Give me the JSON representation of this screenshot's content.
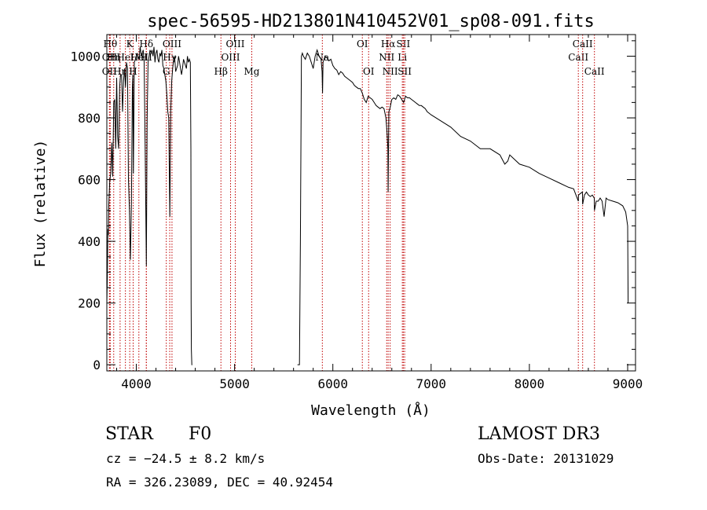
{
  "chart_data": {
    "type": "line",
    "title": "spec-56595-HD213801N410452V01_sp08-091.fits",
    "xlabel": "Wavelength (Å)",
    "ylabel": "Flux (relative)",
    "xlim": [
      3700,
      9080
    ],
    "ylim": [
      -20,
      1070
    ],
    "xticks": [
      4000,
      5000,
      6000,
      7000,
      8000,
      9000
    ],
    "yticks": [
      0,
      200,
      400,
      600,
      800,
      1000
    ],
    "grid": false,
    "series": [
      {
        "name": "flux",
        "segments": [
          {
            "x": [
              3700,
              3705,
              3710,
              3715,
              3720,
              3730,
              3740,
              3750,
              3760,
              3770,
              3780,
              3790,
              3800,
              3810,
              3820,
              3830,
              3840,
              3850,
              3860,
              3870,
              3880,
              3890,
              3900,
              3910,
              3920,
              3930,
              3940,
              3950,
              3960,
              3965,
              3970,
              3980,
              3990,
              4000,
              4010,
              4020,
              4030,
              4040,
              4050,
              4060,
              4070,
              4080,
              4090,
              4100,
              4102,
              4110,
              4120,
              4130,
              4140,
              4150,
              4160,
              4170,
              4180,
              4190,
              4200,
              4210,
              4220,
              4230,
              4240,
              4250,
              4260,
              4270,
              4280,
              4290,
              4300,
              4310,
              4320,
              4330,
              4340,
              4341,
              4350,
              4360,
              4370,
              4380,
              4390,
              4400,
              4410,
              4420,
              4430,
              4440,
              4450,
              4460,
              4470,
              4480,
              4490,
              4500,
              4510,
              4520,
              4530,
              4540,
              4550,
              4555,
              4558,
              4560,
              4565,
              4570
            ],
            "y": [
              200,
              280,
              440,
              420,
              520,
              600,
              620,
              720,
              610,
              850,
              860,
              700,
              930,
              740,
              700,
              900,
              940,
              940,
              820,
              920,
              960,
              900,
              980,
              960,
              600,
              500,
              340,
              520,
              900,
              940,
              620,
              980,
              990,
              1000,
              1010,
              990,
              1000,
              1030,
              1000,
              1010,
              1020,
              980,
              700,
              400,
              320,
              800,
              980,
              1000,
              1020,
              1010,
              1020,
              1000,
              1030,
              980,
              1010,
              1020,
              990,
              980,
              1010,
              1000,
              1020,
              970,
              960,
              940,
              920,
              880,
              820,
              800,
              500,
              480,
              820,
              920,
              960,
              990,
              1000,
              950,
              960,
              970,
              1000,
              980,
              960,
              940,
              960,
              990,
              980,
              970,
              960,
              1000,
              980,
              990,
              980,
              700,
              200,
              50,
              0,
              0
            ]
          },
          {
            "x": [
              5640,
              5660,
              5670,
              5680,
              5690,
              5700,
              5720,
              5740,
              5760,
              5780,
              5800,
              5820,
              5840,
              5860,
              5880,
              5890,
              5895,
              5900,
              5910,
              5920,
              5940,
              5960,
              5980,
              6000,
              6020,
              6040,
              6060,
              6080,
              6100,
              6120,
              6140,
              6160,
              6180,
              6200,
              6220,
              6240,
              6260,
              6280,
              6300,
              6320,
              6340,
              6360,
              6380,
              6400,
              6420,
              6440,
              6460,
              6480,
              6500,
              6520,
              6540,
              6550,
              6560,
              6563,
              6565,
              6570,
              6580,
              6600,
              6620,
              6640,
              6660,
              6680,
              6700,
              6720,
              6740,
              6760,
              6780,
              6800,
              6820,
              6840,
              6860,
              6880,
              6900,
              6920,
              6940,
              6960,
              6980,
              7000,
              7100,
              7200,
              7300,
              7400,
              7500,
              7600,
              7700,
              7750,
              7780,
              7800,
              7900,
              8000,
              8100,
              8200,
              8300,
              8400,
              8450,
              8498,
              8500,
              8520,
              8540,
              8542,
              8560,
              8580,
              8600,
              8620,
              8640,
              8660,
              8662,
              8680,
              8700,
              8720,
              8740,
              8760,
              8780,
              8800,
              8850,
              8900,
              8950,
              8980,
              9000,
              9005
            ],
            "y": [
              0,
              0,
              400,
              1000,
              1010,
              1000,
              990,
              1010,
              1000,
              980,
              960,
              1000,
              1020,
              1000,
              990,
              950,
              880,
              980,
              990,
              1000,
              995,
              985,
              990,
              970,
              960,
              955,
              940,
              950,
              945,
              935,
              930,
              925,
              920,
              915,
              905,
              900,
              895,
              895,
              880,
              860,
              850,
              870,
              865,
              860,
              850,
              840,
              835,
              830,
              835,
              830,
              800,
              760,
              700,
              560,
              660,
              820,
              830,
              860,
              865,
              860,
              875,
              870,
              860,
              850,
              870,
              865,
              865,
              860,
              855,
              850,
              845,
              840,
              840,
              835,
              830,
              820,
              815,
              810,
              790,
              770,
              740,
              725,
              700,
              700,
              680,
              650,
              660,
              680,
              650,
              640,
              620,
              605,
              590,
              575,
              570,
              530,
              550,
              555,
              560,
              520,
              550,
              560,
              550,
              545,
              550,
              540,
              500,
              530,
              530,
              540,
              530,
              480,
              540,
              535,
              530,
              525,
              515,
              495,
              450,
              200
            ]
          }
        ]
      }
    ],
    "line_markers": [
      {
        "x": 3735,
        "row": 1,
        "label": "Hθ"
      },
      {
        "x": 3727,
        "row": 2,
        "label": "OII"
      },
      {
        "x": 3727,
        "row": 3,
        "label": "OII"
      },
      {
        "x": 3770,
        "row": 2,
        "label": "Hη"
      },
      {
        "x": 3835,
        "row": 3,
        "label": "Hη"
      },
      {
        "x": 3889,
        "row": 2,
        "label": "HeI"
      },
      {
        "x": 3933,
        "row": 1,
        "label": "K"
      },
      {
        "x": 3968,
        "row": 3,
        "label": "H"
      },
      {
        "x": 4026,
        "row": 2,
        "label": "HeI"
      },
      {
        "x": 4102,
        "row": 1,
        "label": "Hδ"
      },
      {
        "x": 4102,
        "row": 2,
        "label": "HI"
      },
      {
        "x": 4305,
        "row": 3,
        "label": "G"
      },
      {
        "x": 4340,
        "row": 2,
        "label": "Hγ"
      },
      {
        "x": 4363,
        "row": 1,
        "label": "OIII"
      },
      {
        "x": 4861,
        "row": 3,
        "label": "Hβ"
      },
      {
        "x": 4959,
        "row": 2,
        "label": "OIII"
      },
      {
        "x": 5007,
        "row": 1,
        "label": "OIII"
      },
      {
        "x": 5175,
        "row": 3,
        "label": "Mg"
      },
      {
        "x": 5893,
        "row": 2,
        "label": "Na"
      },
      {
        "x": 6300,
        "row": 1,
        "label": "OI"
      },
      {
        "x": 6364,
        "row": 3,
        "label": "OI"
      },
      {
        "x": 6548,
        "row": 2,
        "label": "NII"
      },
      {
        "x": 6563,
        "row": 1,
        "label": "Hα"
      },
      {
        "x": 6583,
        "row": 3,
        "label": "NII"
      },
      {
        "x": 6707,
        "row": 2,
        "label": "Li"
      },
      {
        "x": 6717,
        "row": 1,
        "label": "SII"
      },
      {
        "x": 6731,
        "row": 3,
        "label": "SII"
      },
      {
        "x": 8498,
        "row": 2,
        "label": "CaII"
      },
      {
        "x": 8542,
        "row": 1,
        "label": "CaII"
      },
      {
        "x": 8662,
        "row": 3,
        "label": "CaII"
      }
    ],
    "marker_color": "#c00000",
    "line_color": "#000000"
  },
  "info": {
    "object_type": "STAR",
    "subclass": "F0",
    "survey": "LAMOST DR3",
    "cz": "cz = −24.5 ± 8.2 km/s",
    "obs_date": "Obs-Date: 20131029",
    "coords": "RA = 326.23089, DEC =  40.92454"
  }
}
